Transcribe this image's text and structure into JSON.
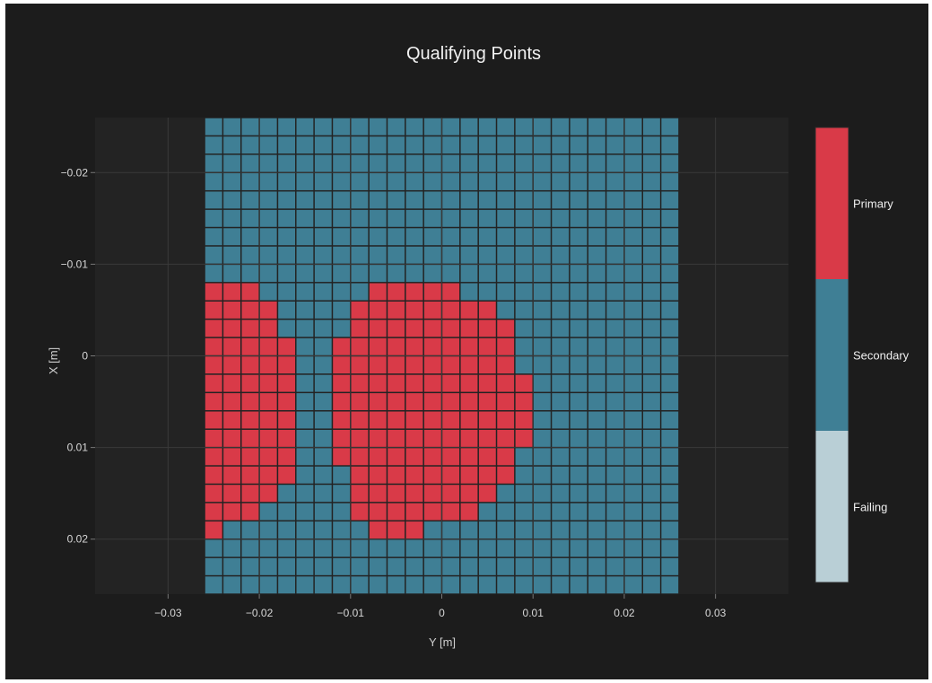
{
  "chart_data": {
    "type": "heatmap",
    "title": "Qualifying Points",
    "xlabel": "Y [m]",
    "ylabel": "X [m]",
    "xlim": [
      -0.038,
      0.038
    ],
    "ylim": [
      0.026,
      -0.026
    ],
    "x_ticks": [
      -0.03,
      -0.02,
      -0.01,
      0,
      0.01,
      0.02,
      0.03
    ],
    "x_tick_labels": [
      "−0.03",
      "−0.02",
      "−0.01",
      "0",
      "0.01",
      "0.02",
      "0.03"
    ],
    "y_ticks": [
      -0.02,
      -0.01,
      0,
      0.01,
      0.02
    ],
    "y_tick_labels": [
      "−0.02",
      "−0.01",
      "0",
      "0.01",
      "0.02"
    ],
    "grid": true,
    "x_start": -0.025,
    "x_step": 0.002,
    "y_start": -0.025,
    "y_step": 0.002,
    "z_legend": {
      "1": "Primary",
      "2": "Secondary",
      "3": "Failing"
    },
    "z": [
      [
        2,
        2,
        2,
        2,
        2,
        2,
        2,
        2,
        2,
        2,
        2,
        2,
        2,
        2,
        2,
        2,
        2,
        2,
        2,
        2,
        2,
        2,
        2,
        2,
        2,
        2
      ],
      [
        2,
        2,
        2,
        2,
        2,
        2,
        2,
        2,
        2,
        2,
        2,
        2,
        2,
        2,
        2,
        2,
        2,
        2,
        2,
        2,
        2,
        2,
        2,
        2,
        2,
        2
      ],
      [
        2,
        2,
        2,
        2,
        2,
        2,
        2,
        2,
        2,
        2,
        2,
        2,
        2,
        2,
        2,
        2,
        2,
        2,
        2,
        2,
        2,
        2,
        2,
        2,
        2,
        2
      ],
      [
        2,
        2,
        2,
        2,
        2,
        2,
        2,
        2,
        2,
        2,
        2,
        2,
        2,
        2,
        2,
        2,
        2,
        2,
        2,
        2,
        2,
        2,
        2,
        2,
        2,
        2
      ],
      [
        2,
        2,
        2,
        2,
        2,
        2,
        2,
        2,
        2,
        2,
        2,
        2,
        2,
        2,
        2,
        2,
        2,
        2,
        2,
        2,
        2,
        2,
        2,
        2,
        2,
        2
      ],
      [
        2,
        2,
        2,
        2,
        2,
        2,
        2,
        2,
        2,
        2,
        2,
        2,
        2,
        2,
        2,
        2,
        2,
        2,
        2,
        2,
        2,
        2,
        2,
        2,
        2,
        2
      ],
      [
        2,
        2,
        2,
        2,
        2,
        2,
        2,
        2,
        2,
        2,
        2,
        2,
        2,
        2,
        2,
        2,
        2,
        2,
        2,
        2,
        2,
        2,
        2,
        2,
        2,
        2
      ],
      [
        2,
        2,
        2,
        2,
        2,
        2,
        2,
        2,
        2,
        2,
        2,
        2,
        2,
        2,
        2,
        2,
        2,
        2,
        2,
        2,
        2,
        2,
        2,
        2,
        2,
        2
      ],
      [
        2,
        2,
        2,
        2,
        2,
        2,
        2,
        2,
        2,
        2,
        2,
        2,
        2,
        2,
        2,
        2,
        2,
        2,
        2,
        2,
        2,
        2,
        2,
        2,
        2,
        2
      ],
      [
        1,
        1,
        1,
        2,
        2,
        2,
        2,
        2,
        2,
        1,
        1,
        1,
        1,
        1,
        2,
        2,
        2,
        2,
        2,
        2,
        2,
        2,
        2,
        2,
        2,
        2
      ],
      [
        1,
        1,
        1,
        1,
        2,
        2,
        2,
        2,
        1,
        1,
        1,
        1,
        1,
        1,
        1,
        1,
        2,
        2,
        2,
        2,
        2,
        2,
        2,
        2,
        2,
        2
      ],
      [
        1,
        1,
        1,
        1,
        2,
        2,
        2,
        2,
        1,
        1,
        1,
        1,
        1,
        1,
        1,
        1,
        1,
        2,
        2,
        2,
        2,
        2,
        2,
        2,
        2,
        2
      ],
      [
        1,
        1,
        1,
        1,
        1,
        2,
        2,
        1,
        1,
        1,
        1,
        1,
        1,
        1,
        1,
        1,
        1,
        2,
        2,
        2,
        2,
        2,
        2,
        2,
        2,
        2
      ],
      [
        1,
        1,
        1,
        1,
        1,
        2,
        2,
        1,
        1,
        1,
        1,
        1,
        1,
        1,
        1,
        1,
        1,
        2,
        2,
        2,
        2,
        2,
        2,
        2,
        2,
        2
      ],
      [
        1,
        1,
        1,
        1,
        1,
        2,
        2,
        1,
        1,
        1,
        1,
        1,
        1,
        1,
        1,
        1,
        1,
        1,
        2,
        2,
        2,
        2,
        2,
        2,
        2,
        2
      ],
      [
        1,
        1,
        1,
        1,
        1,
        2,
        2,
        1,
        1,
        1,
        1,
        1,
        1,
        1,
        1,
        1,
        1,
        1,
        2,
        2,
        2,
        2,
        2,
        2,
        2,
        2
      ],
      [
        1,
        1,
        1,
        1,
        1,
        2,
        2,
        1,
        1,
        1,
        1,
        1,
        1,
        1,
        1,
        1,
        1,
        1,
        2,
        2,
        2,
        2,
        2,
        2,
        2,
        2
      ],
      [
        1,
        1,
        1,
        1,
        1,
        2,
        2,
        1,
        1,
        1,
        1,
        1,
        1,
        1,
        1,
        1,
        1,
        1,
        2,
        2,
        2,
        2,
        2,
        2,
        2,
        2
      ],
      [
        1,
        1,
        1,
        1,
        1,
        2,
        2,
        1,
        1,
        1,
        1,
        1,
        1,
        1,
        1,
        1,
        1,
        2,
        2,
        2,
        2,
        2,
        2,
        2,
        2,
        2
      ],
      [
        1,
        1,
        1,
        1,
        1,
        2,
        2,
        2,
        1,
        1,
        1,
        1,
        1,
        1,
        1,
        1,
        1,
        2,
        2,
        2,
        2,
        2,
        2,
        2,
        2,
        2
      ],
      [
        1,
        1,
        1,
        1,
        2,
        2,
        2,
        2,
        1,
        1,
        1,
        1,
        1,
        1,
        1,
        1,
        2,
        2,
        2,
        2,
        2,
        2,
        2,
        2,
        2,
        2
      ],
      [
        1,
        1,
        1,
        2,
        2,
        2,
        2,
        2,
        1,
        1,
        1,
        1,
        1,
        1,
        1,
        2,
        2,
        2,
        2,
        2,
        2,
        2,
        2,
        2,
        2,
        2
      ],
      [
        1,
        2,
        2,
        2,
        2,
        2,
        2,
        2,
        2,
        1,
        1,
        1,
        2,
        2,
        2,
        2,
        2,
        2,
        2,
        2,
        2,
        2,
        2,
        2,
        2,
        2
      ],
      [
        2,
        2,
        2,
        2,
        2,
        2,
        2,
        2,
        2,
        2,
        2,
        2,
        2,
        2,
        2,
        2,
        2,
        2,
        2,
        2,
        2,
        2,
        2,
        2,
        2,
        2
      ],
      [
        2,
        2,
        2,
        2,
        2,
        2,
        2,
        2,
        2,
        2,
        2,
        2,
        2,
        2,
        2,
        2,
        2,
        2,
        2,
        2,
        2,
        2,
        2,
        2,
        2,
        2
      ],
      [
        2,
        2,
        2,
        2,
        2,
        2,
        2,
        2,
        2,
        2,
        2,
        2,
        2,
        2,
        2,
        2,
        2,
        2,
        2,
        2,
        2,
        2,
        2,
        2,
        2,
        2
      ]
    ],
    "colorbar": {
      "categories": [
        "Primary",
        "Secondary",
        "Failing"
      ],
      "colors": [
        "#d93a48",
        "#3f7f95",
        "#b9cfd6"
      ]
    }
  },
  "colors": {
    "background": "#1c1c1c",
    "plot_background": "#232323",
    "grid": "#3a3a3a",
    "primary": "#d93a48",
    "secondary": "#3f7f95",
    "failing": "#b9cfd6"
  }
}
